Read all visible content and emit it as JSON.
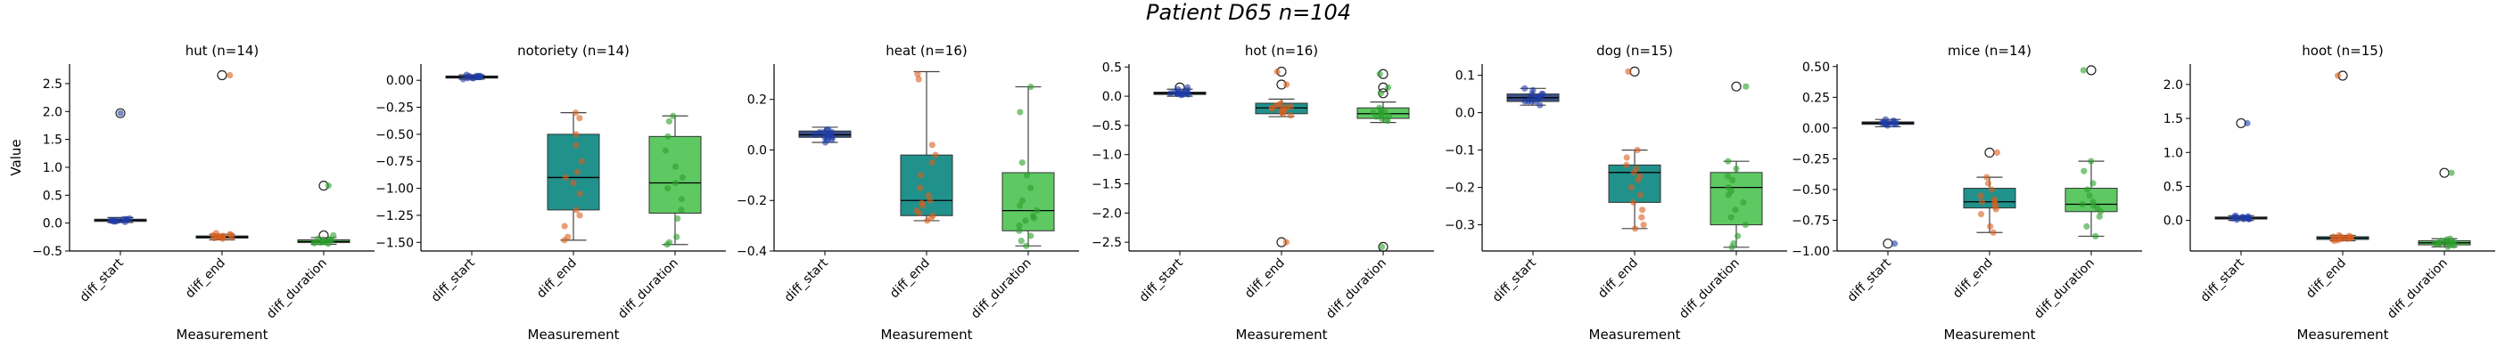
{
  "figure": {
    "title": "Patient D65 n=104"
  },
  "chart_data": [
    {
      "type": "box",
      "title": "hut (n=14)",
      "xlabel": "Measurement",
      "ylabel": "Value",
      "categories": [
        "diff_start",
        "diff_end",
        "diff_duration"
      ],
      "ylim": [
        -0.5,
        2.85
      ],
      "yticks": [
        -0.5,
        0.0,
        0.5,
        1.0,
        1.5,
        2.0,
        2.5
      ],
      "ytick_labels": [
        "−0.5",
        "0.0",
        "0.5",
        "1.0",
        "1.5",
        "2.0",
        "2.5"
      ],
      "boxes": [
        {
          "q1": 0.03,
          "median": 0.05,
          "q3": 0.07,
          "whisker_low": 0.01,
          "whisker_high": 0.1,
          "outliers": [
            1.97
          ]
        },
        {
          "q1": -0.27,
          "median": -0.25,
          "q3": -0.23,
          "whisker_low": -0.3,
          "whisker_high": -0.2,
          "outliers": [
            2.65
          ]
        },
        {
          "q1": -0.35,
          "median": -0.33,
          "q3": -0.3,
          "whisker_low": -0.38,
          "whisker_high": -0.26,
          "outliers": [
            0.67,
            -0.22
          ]
        }
      ],
      "points": [
        [
          0.02,
          0.04,
          0.05,
          0.06,
          0.03,
          0.07,
          0.05,
          0.08,
          0.04,
          0.06,
          0.05,
          0.03,
          0.07,
          1.97
        ],
        [
          -0.26,
          -0.24,
          -0.25,
          -0.23,
          -0.27,
          -0.22,
          -0.2,
          -0.18,
          -0.25,
          -0.26,
          -0.24,
          -0.28,
          -0.21,
          2.65
        ],
        [
          -0.33,
          -0.35,
          -0.31,
          -0.34,
          -0.3,
          -0.36,
          -0.32,
          -0.28,
          -0.33,
          -0.29,
          -0.37,
          -0.22,
          -0.34,
          0.67
        ]
      ]
    },
    {
      "type": "box",
      "title": "notoriety (n=14)",
      "xlabel": "Measurement",
      "ylabel": "",
      "categories": [
        "diff_start",
        "diff_end",
        "diff_duration"
      ],
      "ylim": [
        -1.58,
        0.15
      ],
      "yticks": [
        0.0,
        -0.25,
        -0.5,
        -0.75,
        -1.0,
        -1.25,
        -1.5
      ],
      "ytick_labels": [
        "0.00",
        "−0.25",
        "−0.50",
        "−0.75",
        "−1.00",
        "−1.25",
        "−1.50"
      ],
      "boxes": [
        {
          "q1": 0.02,
          "median": 0.03,
          "q3": 0.04,
          "whisker_low": 0.01,
          "whisker_high": 0.05,
          "outliers": []
        },
        {
          "q1": -1.2,
          "median": -0.9,
          "q3": -0.5,
          "whisker_low": -1.48,
          "whisker_high": -0.3,
          "outliers": []
        },
        {
          "q1": -1.23,
          "median": -0.95,
          "q3": -0.52,
          "whisker_low": -1.52,
          "whisker_high": -0.33,
          "outliers": []
        }
      ],
      "points": [
        [
          0.02,
          0.03,
          0.04,
          0.03,
          0.02,
          0.04,
          0.03,
          0.05,
          0.02,
          0.03,
          0.04,
          0.03,
          0.01,
          0.04
        ],
        [
          -0.3,
          -0.35,
          -0.5,
          -0.6,
          -0.75,
          -0.85,
          -0.9,
          -0.95,
          -1.05,
          -1.2,
          -1.25,
          -1.35,
          -1.45,
          -1.48
        ],
        [
          -0.33,
          -0.38,
          -0.52,
          -0.65,
          -0.8,
          -0.9,
          -0.95,
          -1.0,
          -1.1,
          -1.2,
          -1.28,
          -1.45,
          -1.5,
          -1.52
        ]
      ]
    },
    {
      "type": "box",
      "title": "heat (n=16)",
      "xlabel": "Measurement",
      "ylabel": "",
      "categories": [
        "diff_start",
        "diff_end",
        "diff_duration"
      ],
      "ylim": [
        -0.4,
        0.34
      ],
      "yticks": [
        -0.4,
        -0.2,
        0.0,
        0.2
      ],
      "ytick_labels": [
        "−0.4",
        "−0.2",
        "0.0",
        "0.2"
      ],
      "boxes": [
        {
          "q1": 0.05,
          "median": 0.06,
          "q3": 0.075,
          "whisker_low": 0.03,
          "whisker_high": 0.09,
          "outliers": []
        },
        {
          "q1": -0.26,
          "median": -0.2,
          "q3": -0.02,
          "whisker_low": -0.28,
          "whisker_high": 0.31,
          "outliers": []
        },
        {
          "q1": -0.32,
          "median": -0.24,
          "q3": -0.09,
          "whisker_low": -0.38,
          "whisker_high": 0.25,
          "outliers": []
        }
      ],
      "points": [
        [
          0.04,
          0.05,
          0.06,
          0.07,
          0.06,
          0.05,
          0.08,
          0.07,
          0.06,
          0.05,
          0.04,
          0.07,
          0.06,
          0.03,
          0.08,
          0.06
        ],
        [
          0.3,
          0.28,
          0.02,
          -0.02,
          -0.05,
          -0.1,
          -0.15,
          -0.18,
          -0.2,
          -0.22,
          -0.24,
          -0.25,
          -0.26,
          -0.27,
          -0.28,
          -0.21
        ],
        [
          0.25,
          0.15,
          -0.05,
          -0.1,
          -0.15,
          -0.2,
          -0.22,
          -0.24,
          -0.26,
          -0.28,
          -0.3,
          -0.32,
          -0.34,
          -0.36,
          -0.38,
          -0.27
        ]
      ]
    },
    {
      "type": "box",
      "title": "hot (n=16)",
      "xlabel": "Measurement",
      "ylabel": "",
      "categories": [
        "diff_start",
        "diff_end",
        "diff_duration"
      ],
      "ylim": [
        -2.65,
        0.55
      ],
      "yticks": [
        0.5,
        0.0,
        -0.5,
        -1.0,
        -1.5,
        -2.0,
        -2.5
      ],
      "ytick_labels": [
        "0.5",
        "0.0",
        "−0.5",
        "−1.0",
        "−1.5",
        "−2.0",
        "−2.5"
      ],
      "boxes": [
        {
          "q1": 0.03,
          "median": 0.05,
          "q3": 0.07,
          "whisker_low": 0.0,
          "whisker_high": 0.12,
          "outliers": [
            0.15
          ]
        },
        {
          "q1": -0.3,
          "median": -0.2,
          "q3": -0.12,
          "whisker_low": -0.35,
          "whisker_high": -0.05,
          "outliers": [
            0.42,
            0.2,
            -2.5
          ]
        },
        {
          "q1": -0.38,
          "median": -0.3,
          "q3": -0.2,
          "whisker_low": -0.45,
          "whisker_high": -0.1,
          "outliers": [
            0.38,
            0.15,
            0.05,
            -2.58
          ]
        }
      ],
      "points": [
        [
          0.02,
          0.04,
          0.06,
          0.05,
          0.03,
          0.07,
          0.08,
          0.05,
          0.04,
          0.06,
          0.1,
          0.12,
          0.03,
          0.05,
          0.06,
          0.15
        ],
        [
          -0.15,
          -0.2,
          -0.25,
          -0.18,
          -0.3,
          -0.22,
          -0.28,
          -0.12,
          -0.19,
          -0.24,
          -0.33,
          -0.16,
          -0.21,
          0.42,
          0.2,
          -2.5
        ],
        [
          -0.25,
          -0.3,
          -0.35,
          -0.28,
          -0.4,
          -0.32,
          -0.38,
          -0.2,
          -0.29,
          -0.34,
          -0.42,
          0.38,
          0.15,
          0.05,
          -0.27,
          -2.58
        ]
      ]
    },
    {
      "type": "box",
      "title": "dog (n=15)",
      "xlabel": "Measurement",
      "ylabel": "",
      "categories": [
        "diff_start",
        "diff_end",
        "diff_duration"
      ],
      "ylim": [
        -0.37,
        0.13
      ],
      "yticks": [
        0.1,
        0.0,
        -0.1,
        -0.2,
        -0.3
      ],
      "ytick_labels": [
        "0.1",
        "0.0",
        "−0.1",
        "−0.2",
        "−0.3"
      ],
      "boxes": [
        {
          "q1": 0.03,
          "median": 0.04,
          "q3": 0.05,
          "whisker_low": 0.02,
          "whisker_high": 0.065,
          "outliers": []
        },
        {
          "q1": -0.24,
          "median": -0.16,
          "q3": -0.14,
          "whisker_low": -0.31,
          "whisker_high": -0.1,
          "outliers": [
            0.11
          ]
        },
        {
          "q1": -0.3,
          "median": -0.2,
          "q3": -0.16,
          "whisker_low": -0.36,
          "whisker_high": -0.13,
          "outliers": [
            0.07
          ]
        }
      ],
      "points": [
        [
          0.02,
          0.03,
          0.04,
          0.05,
          0.04,
          0.03,
          0.06,
          0.05,
          0.04,
          0.03,
          0.05,
          0.04,
          0.03,
          0.065,
          0.04
        ],
        [
          -0.1,
          -0.12,
          -0.14,
          -0.15,
          -0.16,
          -0.17,
          -0.18,
          -0.2,
          -0.22,
          -0.24,
          -0.26,
          -0.28,
          -0.3,
          -0.31,
          0.11
        ],
        [
          -0.13,
          -0.15,
          -0.17,
          -0.18,
          -0.2,
          -0.21,
          -0.22,
          -0.24,
          -0.26,
          -0.28,
          -0.3,
          -0.33,
          -0.35,
          -0.36,
          0.07
        ]
      ]
    },
    {
      "type": "box",
      "title": "mice (n=14)",
      "xlabel": "Measurement",
      "ylabel": "",
      "categories": [
        "diff_start",
        "diff_end",
        "diff_duration"
      ],
      "ylim": [
        -1.0,
        0.52
      ],
      "yticks": [
        0.5,
        0.25,
        0.0,
        -0.25,
        -0.5,
        -0.75,
        -1.0
      ],
      "ytick_labels": [
        "0.50",
        "0.25",
        "0.00",
        "−0.25",
        "−0.50",
        "−0.75",
        "−1.00"
      ],
      "boxes": [
        {
          "q1": 0.03,
          "median": 0.04,
          "q3": 0.05,
          "whisker_low": 0.01,
          "whisker_high": 0.07,
          "outliers": [
            -0.94
          ]
        },
        {
          "q1": -0.65,
          "median": -0.6,
          "q3": -0.49,
          "whisker_low": -0.85,
          "whisker_high": -0.4,
          "outliers": [
            -0.2
          ]
        },
        {
          "q1": -0.68,
          "median": -0.62,
          "q3": -0.49,
          "whisker_low": -0.88,
          "whisker_high": -0.27,
          "outliers": [
            0.47
          ]
        }
      ],
      "points": [
        [
          0.02,
          0.03,
          0.04,
          0.05,
          0.04,
          0.03,
          0.06,
          0.05,
          0.04,
          0.03,
          0.05,
          0.04,
          0.07,
          -0.94
        ],
        [
          -0.4,
          -0.45,
          -0.5,
          -0.55,
          -0.58,
          -0.6,
          -0.62,
          -0.64,
          -0.66,
          -0.7,
          -0.8,
          -0.85,
          -0.6,
          -0.2
        ],
        [
          -0.27,
          -0.35,
          -0.45,
          -0.5,
          -0.55,
          -0.6,
          -0.62,
          -0.65,
          -0.68,
          -0.72,
          -0.8,
          -0.88,
          -0.63,
          0.47
        ]
      ]
    },
    {
      "type": "box",
      "title": "hoot (n=15)",
      "xlabel": "Measurement",
      "ylabel": "",
      "categories": [
        "diff_start",
        "diff_end",
        "diff_duration"
      ],
      "ylim": [
        -0.45,
        2.3
      ],
      "yticks": [
        0.0,
        0.5,
        1.0,
        1.5,
        2.0
      ],
      "ytick_labels": [
        "0.0",
        "0.5",
        "1.0",
        "1.5",
        "2.0"
      ],
      "boxes": [
        {
          "q1": 0.02,
          "median": 0.035,
          "q3": 0.05,
          "whisker_low": 0.0,
          "whisker_high": 0.07,
          "outliers": [
            1.43
          ]
        },
        {
          "q1": -0.28,
          "median": -0.26,
          "q3": -0.24,
          "whisker_low": -0.3,
          "whisker_high": -0.22,
          "outliers": [
            2.13
          ]
        },
        {
          "q1": -0.36,
          "median": -0.33,
          "q3": -0.3,
          "whisker_low": -0.39,
          "whisker_high": -0.27,
          "outliers": [
            0.7
          ]
        }
      ],
      "points": [
        [
          0.01,
          0.02,
          0.03,
          0.04,
          0.05,
          0.03,
          0.04,
          0.02,
          0.06,
          0.03,
          0.05,
          0.04,
          0.07,
          0.02,
          1.43
        ],
        [
          -0.25,
          -0.27,
          -0.26,
          -0.24,
          -0.28,
          -0.23,
          -0.29,
          -0.25,
          -0.26,
          -0.22,
          -0.27,
          -0.3,
          -0.24,
          -0.26,
          2.13
        ],
        [
          -0.32,
          -0.34,
          -0.33,
          -0.31,
          -0.35,
          -0.3,
          -0.36,
          -0.32,
          -0.34,
          -0.28,
          -0.37,
          -0.33,
          -0.39,
          -0.27,
          0.7
        ]
      ]
    }
  ],
  "colors": {
    "box_fill": [
      "#3b528b",
      "#21918c",
      "#5ec962"
    ],
    "point": [
      "#1f3ca6",
      "#d95f1e",
      "#2ca02c"
    ],
    "median": "#000000",
    "axis": "#000000"
  }
}
